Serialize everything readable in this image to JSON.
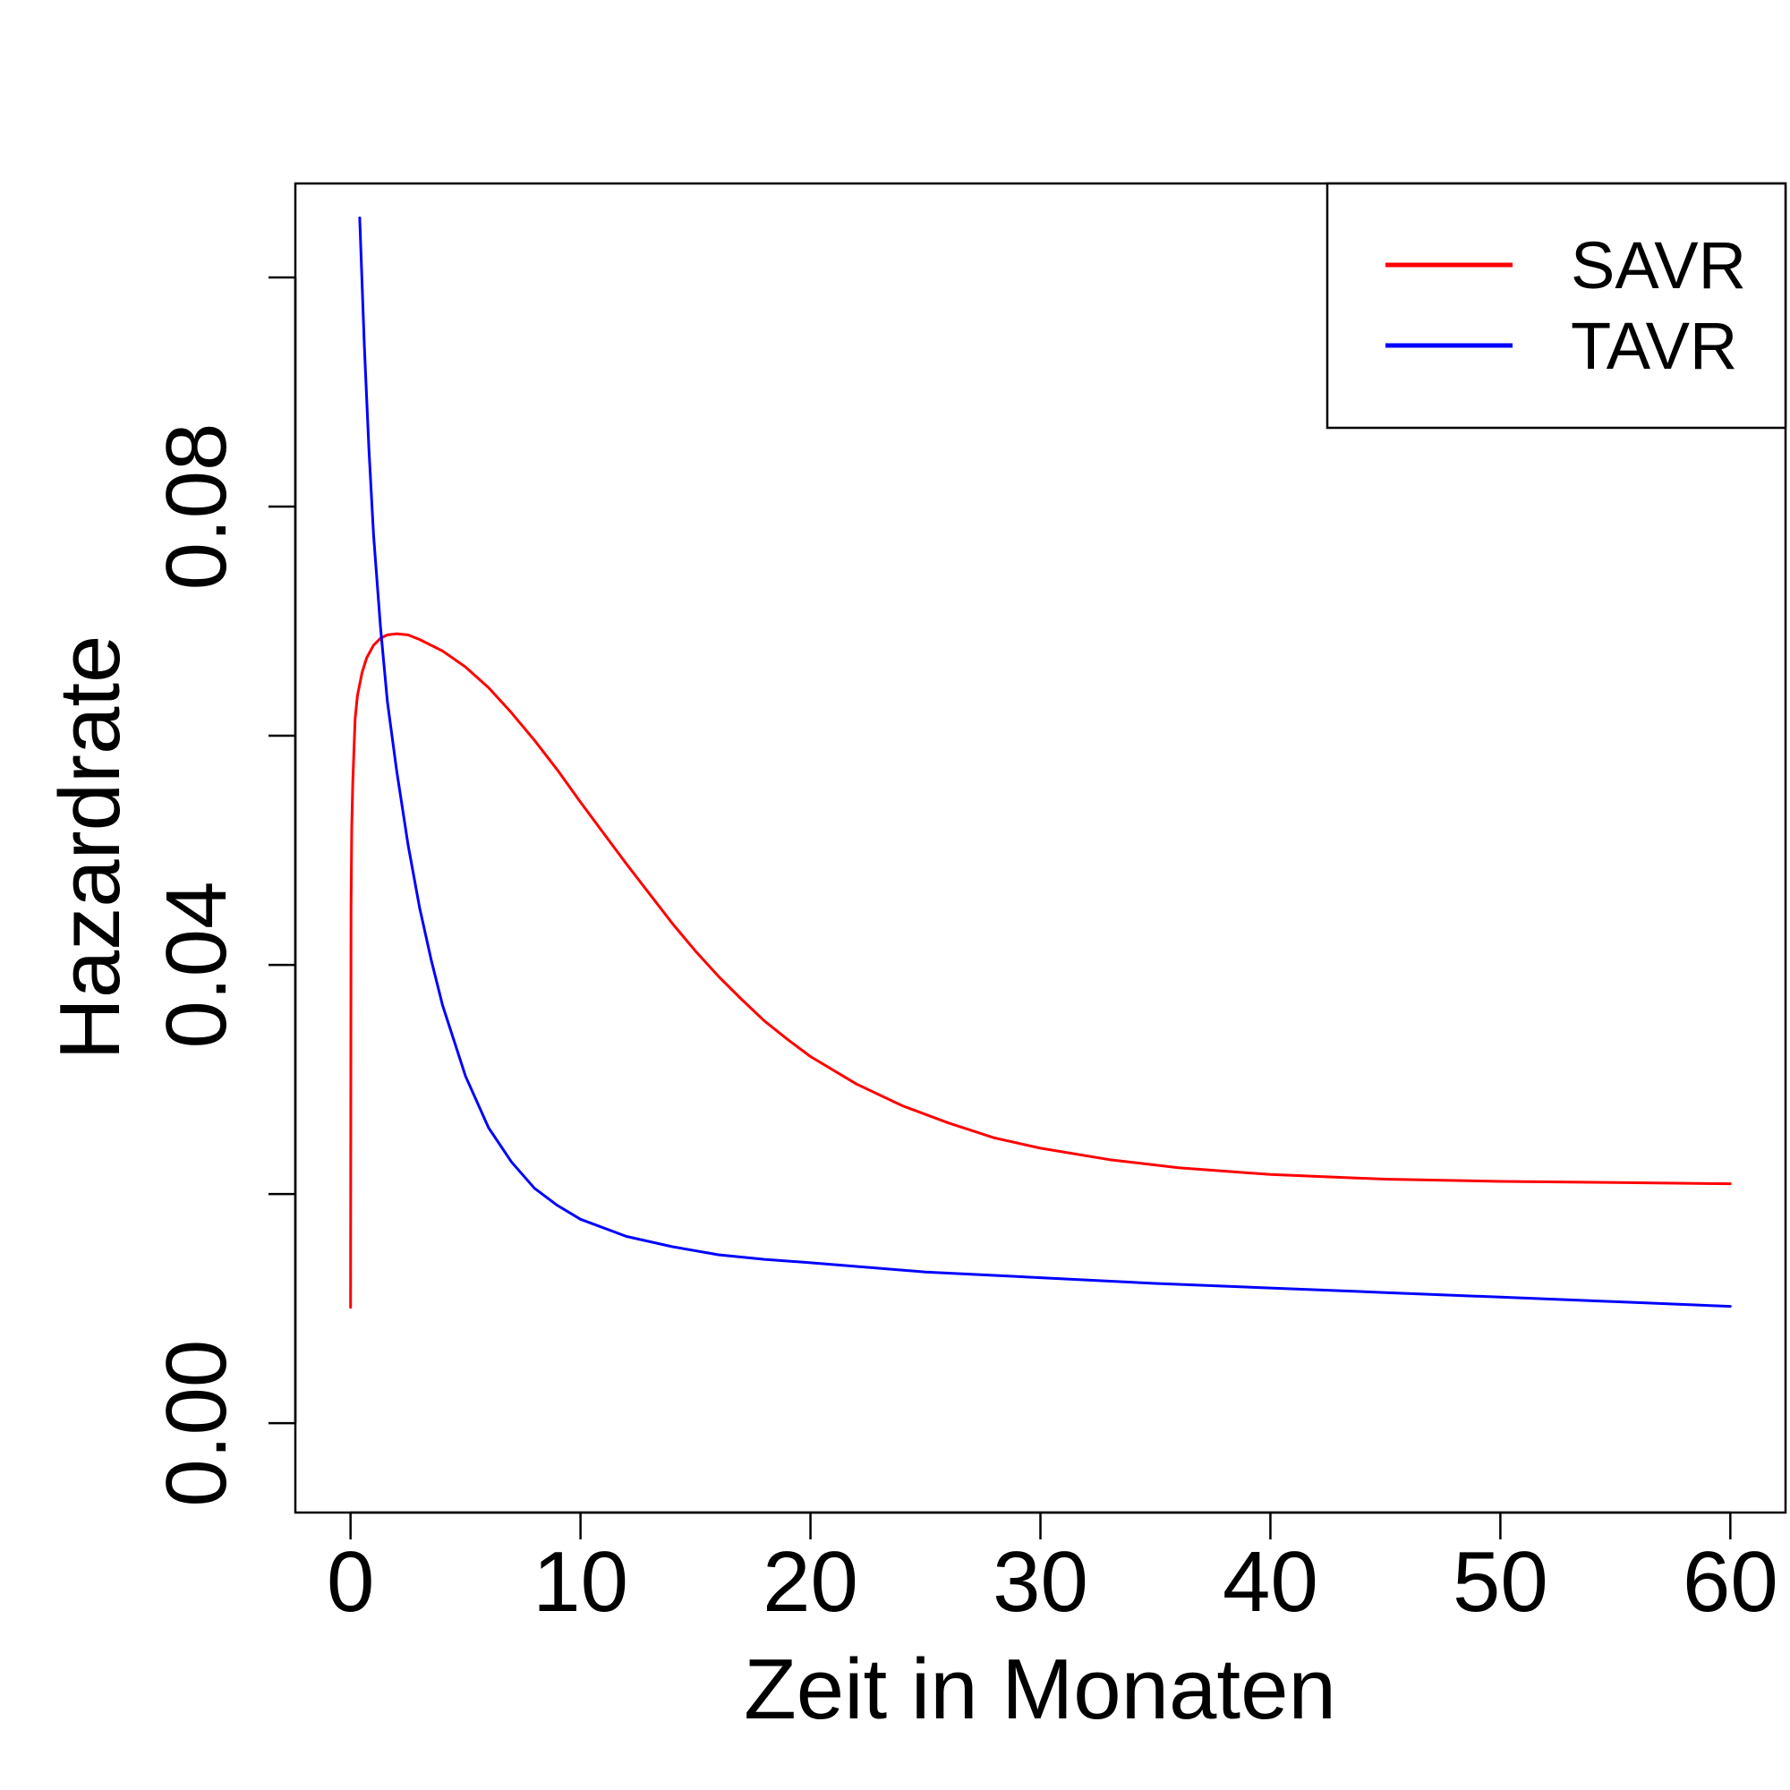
{
  "chart_data": {
    "type": "line",
    "title": "",
    "xlabel": "Zeit in Monaten",
    "ylabel": "Hazardrate",
    "xlim": [
      -2.4,
      62.4
    ],
    "ylim": [
      -0.0078,
      0.1082
    ],
    "x_ticks": [
      0,
      10,
      20,
      30,
      40,
      50,
      60
    ],
    "x_tick_labels": [
      "0",
      "10",
      "20",
      "30",
      "40",
      "50",
      "60"
    ],
    "y_ticks": [
      0.0,
      0.02,
      0.04,
      0.06,
      0.08,
      0.1
    ],
    "y_tick_labels": [
      "0.00",
      "",
      "0.04",
      "",
      "0.08",
      ""
    ],
    "grid": false,
    "legend_position": "top-right",
    "series": [
      {
        "name": "SAVR",
        "color": "#ff0000",
        "points": [
          [
            0,
            0.0101
          ],
          [
            0.02,
            0.045
          ],
          [
            0.05,
            0.052
          ],
          [
            0.1,
            0.056
          ],
          [
            0.2,
            0.0615
          ],
          [
            0.3,
            0.0635
          ],
          [
            0.5,
            0.0655
          ],
          [
            0.7,
            0.0668
          ],
          [
            1,
            0.0679
          ],
          [
            1.3,
            0.0685
          ],
          [
            1.6,
            0.0688
          ],
          [
            2,
            0.0689
          ],
          [
            2.5,
            0.0688
          ],
          [
            3,
            0.0684
          ],
          [
            4,
            0.0674
          ],
          [
            5,
            0.066
          ],
          [
            6,
            0.0642
          ],
          [
            7,
            0.062
          ],
          [
            8,
            0.0596
          ],
          [
            9,
            0.057
          ],
          [
            10,
            0.0542
          ],
          [
            11,
            0.0515
          ],
          [
            12,
            0.0488
          ],
          [
            13,
            0.0462
          ],
          [
            14,
            0.0436
          ],
          [
            15,
            0.0412
          ],
          [
            16,
            0.039
          ],
          [
            17,
            0.037
          ],
          [
            18,
            0.0351
          ],
          [
            19,
            0.0335
          ],
          [
            20,
            0.032
          ],
          [
            22,
            0.0296
          ],
          [
            24,
            0.0277
          ],
          [
            26,
            0.0262
          ],
          [
            28,
            0.0249
          ],
          [
            30,
            0.024
          ],
          [
            33,
            0.023
          ],
          [
            36,
            0.0223
          ],
          [
            40,
            0.0217
          ],
          [
            45,
            0.0213
          ],
          [
            50,
            0.0211
          ],
          [
            55,
            0.021
          ],
          [
            60,
            0.0209
          ]
        ]
      },
      {
        "name": "TAVR",
        "color": "#0000ff",
        "points": [
          [
            0.4,
            0.1052
          ],
          [
            0.6,
            0.094
          ],
          [
            0.8,
            0.085
          ],
          [
            1,
            0.0775
          ],
          [
            1.3,
            0.0695
          ],
          [
            1.6,
            0.063
          ],
          [
            2,
            0.057
          ],
          [
            2.5,
            0.0505
          ],
          [
            3,
            0.045
          ],
          [
            3.5,
            0.0405
          ],
          [
            4,
            0.0365
          ],
          [
            5,
            0.0303
          ],
          [
            6,
            0.0258
          ],
          [
            7,
            0.0228
          ],
          [
            8,
            0.0205
          ],
          [
            9,
            0.019
          ],
          [
            10,
            0.0178
          ],
          [
            12,
            0.0163
          ],
          [
            14,
            0.0154
          ],
          [
            16,
            0.0147
          ],
          [
            18,
            0.0143
          ],
          [
            20,
            0.014
          ],
          [
            25,
            0.0132
          ],
          [
            30,
            0.0127
          ],
          [
            35,
            0.0122
          ],
          [
            40,
            0.0118
          ],
          [
            45,
            0.0114
          ],
          [
            50,
            0.011
          ],
          [
            55,
            0.0106
          ],
          [
            60,
            0.0102
          ]
        ]
      }
    ]
  }
}
